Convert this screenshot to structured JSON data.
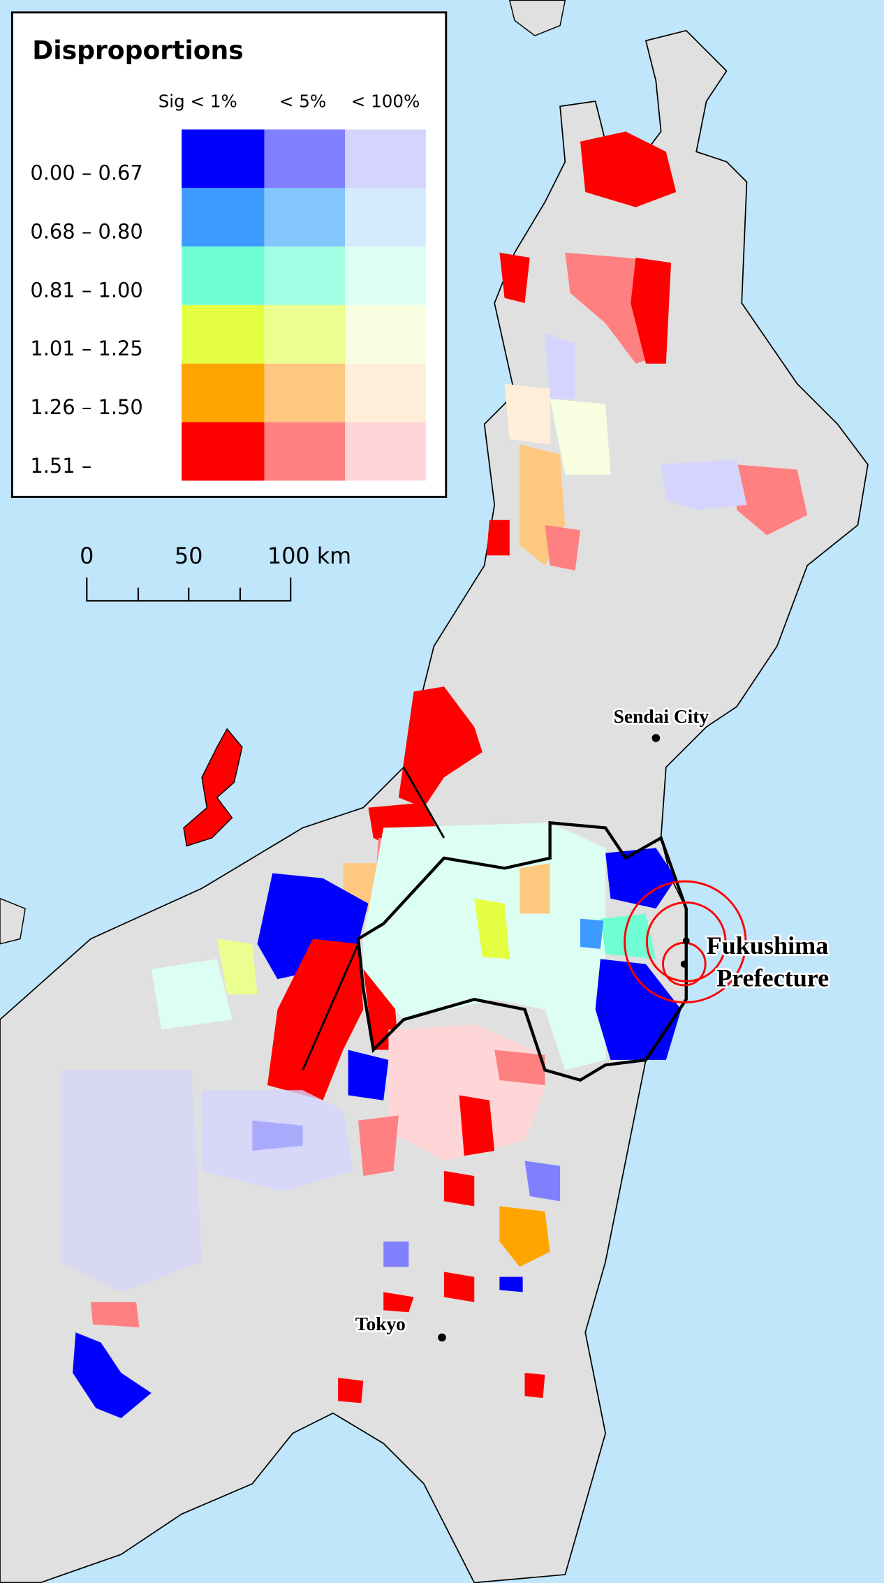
{
  "legend": {
    "title": "Disproportions",
    "columns": [
      "Sig < 1%",
      "< 5%",
      "< 100%"
    ],
    "rows": [
      {
        "label": "0.00 – 0.67",
        "colors": [
          "#0000ff",
          "#8080ff",
          "#d4d4fc"
        ]
      },
      {
        "label": "0.68 – 0.80",
        "colors": [
          "#3d9bff",
          "#84c6ff",
          "#d5eafd"
        ]
      },
      {
        "label": "0.81 – 1.00",
        "colors": [
          "#70ffd4",
          "#a2ffe4",
          "#ddfff3"
        ]
      },
      {
        "label": "1.01 – 1.25",
        "colors": [
          "#e5ff42",
          "#eaff8f",
          "#f7ffe0"
        ]
      },
      {
        "label": "1.26 – 1.50",
        "colors": [
          "#ffa500",
          "#ffc880",
          "#ffefd9"
        ]
      },
      {
        "label": "1.51 –",
        "colors": [
          "#ff0000",
          "#ff8080",
          "#ffd6d8"
        ]
      }
    ]
  },
  "scale_bar": {
    "labels": [
      "0",
      "50",
      "100 km"
    ]
  },
  "places": {
    "sendai": "Sendai City",
    "tokyo": "Tokyo",
    "fukushima_line1": "Fukushima",
    "fukushima_line2": "Prefecture"
  },
  "colors": {
    "sea": "#c0e6fc",
    "land": "#e0e0e0",
    "circles": "#ff0000",
    "border": "#000000"
  }
}
